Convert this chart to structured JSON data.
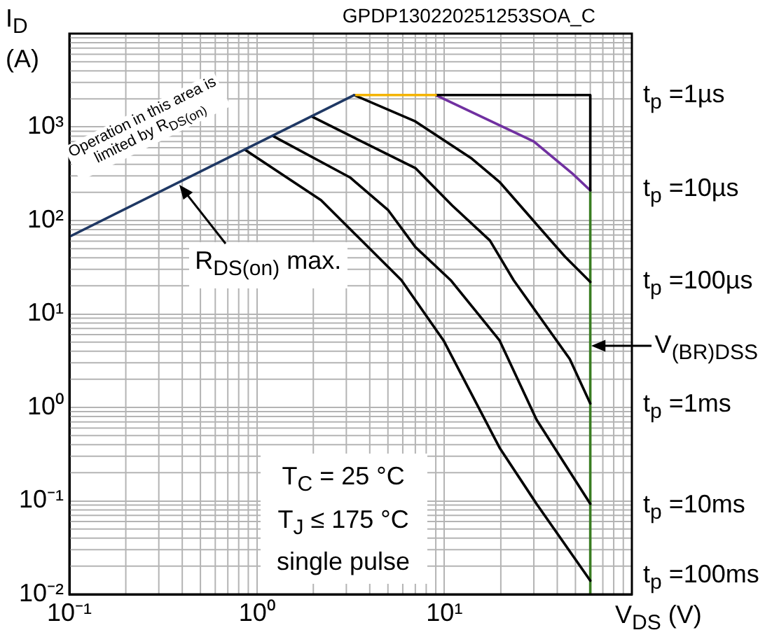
{
  "chart_data": {
    "type": "line",
    "xlabel": "V$_{DS}$ (V)",
    "ylabel": "I$_{D}$ (A)",
    "log": "xy",
    "xlim": [
      0.1,
      100
    ],
    "ylim": [
      0.01,
      10000
    ],
    "xticks": [
      {
        "value": 0.1,
        "label": "10⁻¹"
      },
      {
        "value": 1,
        "label": "10⁰"
      },
      {
        "value": 10,
        "label": "10¹"
      },
      {
        "value": 100,
        "label": null
      }
    ],
    "yticks": [
      {
        "value": 0.01,
        "label": "10⁻²"
      },
      {
        "value": 0.1,
        "label": "10⁻¹"
      },
      {
        "value": 1,
        "label": "10⁰"
      },
      {
        "value": 10,
        "label": "10¹"
      },
      {
        "value": 100,
        "label": "10²"
      },
      {
        "value": 1000,
        "label": "10³"
      },
      {
        "value": 10000,
        "label": null
      }
    ],
    "grid": true,
    "marker": "none",
    "line_style": "solid",
    "series": [
      {
        "color": "#1f3864",
        "x": [
          0.1,
          3.3
        ],
        "values": [
          67,
          2200
        ]
      },
      {
        "color": "#f4b400",
        "x": [
          3.3,
          9
        ],
        "values": [
          2200,
          2200
        ]
      },
      {
        "color": "#000000",
        "x": [
          9,
          60,
          60
        ],
        "values": [
          2200,
          2200,
          210
        ]
      },
      {
        "color": "#7030a0",
        "x": [
          9,
          30,
          48,
          60
        ],
        "values": [
          2200,
          700,
          320,
          210
        ]
      },
      {
        "color": "#000000",
        "x": [
          3.3,
          7,
          14,
          19.7,
          29.4,
          44,
          60
        ],
        "values": [
          2200,
          1150,
          460,
          258,
          103,
          41,
          22
        ]
      },
      {
        "color": "#000000",
        "x": [
          1.96,
          3.3,
          7,
          11,
          17.5,
          23.4,
          31,
          46.6,
          60
        ],
        "values": [
          1300,
          770,
          364,
          145,
          61,
          23,
          10.4,
          3.3,
          1.1
        ]
      },
      {
        "color": "#000000",
        "x": [
          1.22,
          3.14,
          5,
          7,
          10.8,
          19.7,
          31,
          60
        ],
        "values": [
          800,
          289,
          130,
          52,
          23,
          5.2,
          0.74,
          0.093
        ]
      },
      {
        "color": "#000000",
        "x": [
          0.865,
          2.2,
          5.9,
          9.9,
          19.7,
          31,
          60
        ],
        "values": [
          570,
          165,
          23,
          5.2,
          0.37,
          0.093,
          0.014
        ]
      },
      {
        "color": "#3a7d22",
        "x": [
          60,
          60
        ],
        "values": [
          210,
          0.01
        ]
      }
    ],
    "annotations": [
      "GPDP130220251253SOA_C",
      "Operation in this area is limited by R$_{DS(on)}$",
      {
        "text": "R$_{DS(on)}$ max.",
        "x": 0.38,
        "y": 250
      },
      {
        "text": "V$_{(BR)DSS}$",
        "x": 60,
        "y": 4.6
      },
      "T$_{C}$ = 25 °C",
      "T$_{J}$ ≤ 175 °C",
      "single pulse",
      "t$_{p}$ =1µs",
      "t$_{p}$ =10µs",
      "t$_{p}$ =100µs",
      "t$_{p}$ =1ms",
      "t$_{p}$ =10ms",
      "t$_{p}$ =100ms"
    ]
  }
}
